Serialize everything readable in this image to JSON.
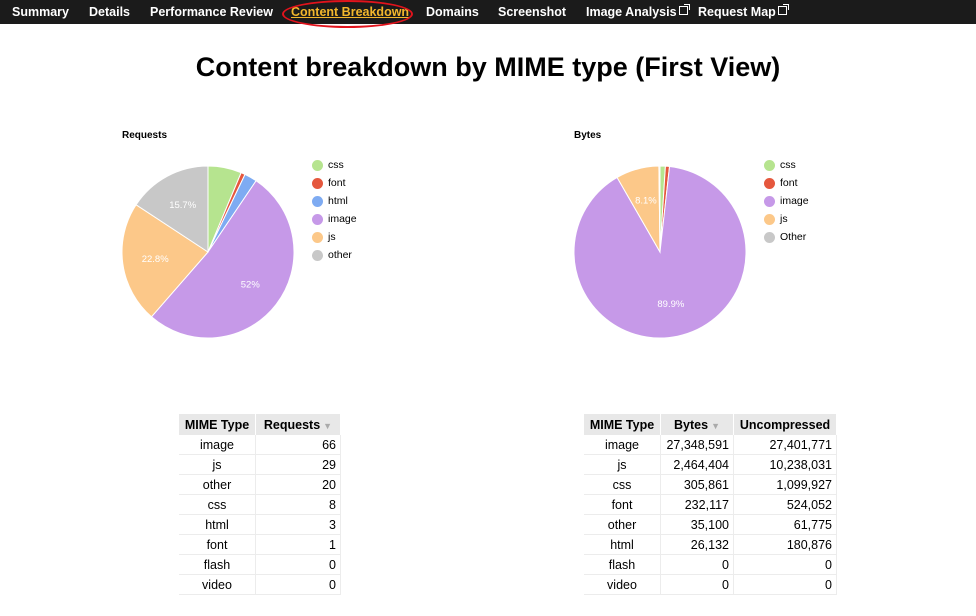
{
  "nav": {
    "items": [
      {
        "label": "Summary",
        "external": false,
        "active": false
      },
      {
        "label": "Details",
        "external": false,
        "active": false
      },
      {
        "label": "Performance Review",
        "external": false,
        "active": false
      },
      {
        "label": "Content Breakdown",
        "external": false,
        "active": true
      },
      {
        "label": "Domains",
        "external": false,
        "active": false
      },
      {
        "label": "Screenshot",
        "external": false,
        "active": false
      },
      {
        "label": "Image Analysis",
        "external": true,
        "active": false
      },
      {
        "label": "Request Map",
        "external": true,
        "active": false
      }
    ]
  },
  "page": {
    "title": "Content breakdown by MIME type (First View)"
  },
  "chart_data": [
    {
      "type": "pie",
      "title": "Requests",
      "slices": [
        {
          "label": "css",
          "value": 8,
          "color": "#b6e48f",
          "pct_label": ""
        },
        {
          "label": "font",
          "value": 1,
          "color": "#e5573d",
          "pct_label": ""
        },
        {
          "label": "html",
          "value": 3,
          "color": "#7eabf2",
          "pct_label": ""
        },
        {
          "label": "image",
          "value": 66,
          "color": "#c699e8",
          "pct_label": "52%"
        },
        {
          "label": "js",
          "value": 29,
          "color": "#fcc889",
          "pct_label": "22.8%"
        },
        {
          "label": "other",
          "value": 20,
          "color": "#c8c8c8",
          "pct_label": "15.7%"
        }
      ],
      "legend": "right"
    },
    {
      "type": "pie",
      "title": "Bytes",
      "slices": [
        {
          "label": "css",
          "value": 305861,
          "color": "#b6e48f",
          "pct_label": ""
        },
        {
          "label": "font",
          "value": 232117,
          "color": "#e5573d",
          "pct_label": ""
        },
        {
          "label": "image",
          "value": 27348591,
          "color": "#c699e8",
          "pct_label": "89.9%"
        },
        {
          "label": "js",
          "value": 2464404,
          "color": "#fcc889",
          "pct_label": "8.1%"
        },
        {
          "label": "Other",
          "value": 61232,
          "color": "#c8c8c8",
          "pct_label": ""
        }
      ],
      "legend": "right"
    }
  ],
  "requests_table": {
    "headers": [
      "MIME Type",
      "Requests"
    ],
    "rows": [
      [
        "image",
        "66"
      ],
      [
        "js",
        "29"
      ],
      [
        "other",
        "20"
      ],
      [
        "css",
        "8"
      ],
      [
        "html",
        "3"
      ],
      [
        "font",
        "1"
      ],
      [
        "flash",
        "0"
      ],
      [
        "video",
        "0"
      ]
    ]
  },
  "bytes_table": {
    "headers": [
      "MIME Type",
      "Bytes",
      "Uncompressed"
    ],
    "rows": [
      [
        "image",
        "27,348,591",
        "27,401,771"
      ],
      [
        "js",
        "2,464,404",
        "10,238,031"
      ],
      [
        "css",
        "305,861",
        "1,099,927"
      ],
      [
        "font",
        "232,117",
        "524,052"
      ],
      [
        "other",
        "35,100",
        "61,775"
      ],
      [
        "html",
        "26,132",
        "180,876"
      ],
      [
        "flash",
        "0",
        "0"
      ],
      [
        "video",
        "0",
        "0"
      ]
    ]
  },
  "icons": {
    "sort": "sort-desc-icon",
    "external": "external-link-icon"
  }
}
